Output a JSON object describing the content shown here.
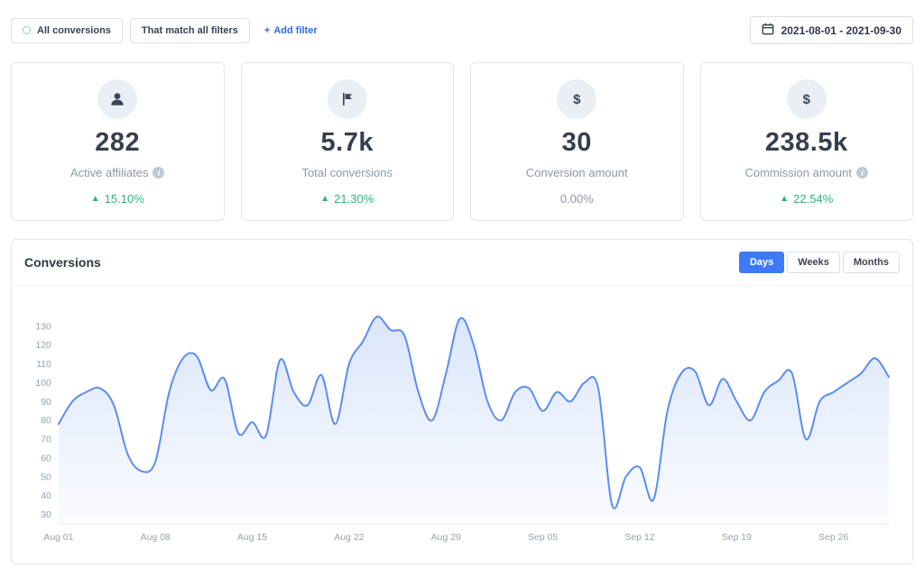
{
  "topbar": {
    "all_conversions": "All conversions",
    "match_all_filters": "That match all filters",
    "add_filter": "Add filter",
    "date_range": "2021-08-01 - 2021-09-30"
  },
  "icons": {
    "plus": "+",
    "dollar": "$",
    "info": "i",
    "up_arrow": "▲"
  },
  "stats": [
    {
      "icon": "user-icon",
      "value": "282",
      "label": "Active affiliates",
      "change": "15.10%",
      "trend": "up"
    },
    {
      "icon": "flag-icon",
      "value": "5.7k",
      "label": "Total conversions",
      "change": "21.30%",
      "trend": "up"
    },
    {
      "icon": "dollar-icon",
      "value": "30",
      "label": "Conversion amount",
      "change": "0.00%",
      "trend": "flat"
    },
    {
      "icon": "dollar-icon",
      "value": "238.5k",
      "label": "Commission amount",
      "change": "22.54%",
      "trend": "up"
    }
  ],
  "panel": {
    "title": "Conversions",
    "tabs": [
      "Days",
      "Weeks",
      "Months"
    ],
    "active_tab": "Days"
  },
  "chart_data": {
    "type": "area",
    "title": "Conversions",
    "x": [
      "Aug 01",
      "Aug 02",
      "Aug 03",
      "Aug 04",
      "Aug 05",
      "Aug 06",
      "Aug 07",
      "Aug 08",
      "Aug 09",
      "Aug 10",
      "Aug 11",
      "Aug 12",
      "Aug 13",
      "Aug 14",
      "Aug 15",
      "Aug 16",
      "Aug 17",
      "Aug 18",
      "Aug 19",
      "Aug 20",
      "Aug 21",
      "Aug 22",
      "Aug 23",
      "Aug 24",
      "Aug 25",
      "Aug 26",
      "Aug 27",
      "Aug 28",
      "Aug 29",
      "Aug 30",
      "Aug 31",
      "Sep 01",
      "Sep 02",
      "Sep 03",
      "Sep 04",
      "Sep 05",
      "Sep 06",
      "Sep 07",
      "Sep 08",
      "Sep 09",
      "Sep 10",
      "Sep 11",
      "Sep 12",
      "Sep 13",
      "Sep 14",
      "Sep 15",
      "Sep 16",
      "Sep 17",
      "Sep 18",
      "Sep 19",
      "Sep 20",
      "Sep 21",
      "Sep 22",
      "Sep 23",
      "Sep 24",
      "Sep 25",
      "Sep 26",
      "Sep 27",
      "Sep 28",
      "Sep 29",
      "Sep 30"
    ],
    "values": [
      78,
      90,
      95,
      97,
      88,
      62,
      53,
      58,
      95,
      113,
      114,
      96,
      102,
      73,
      79,
      72,
      112,
      95,
      88,
      104,
      78,
      110,
      122,
      135,
      128,
      125,
      95,
      80,
      105,
      134,
      120,
      90,
      80,
      95,
      97,
      85,
      95,
      90,
      100,
      97,
      35,
      50,
      55,
      38,
      85,
      105,
      106,
      88,
      102,
      90,
      80,
      95,
      101,
      105,
      70,
      90,
      95,
      100,
      105,
      113,
      103
    ],
    "x_tick_indices": [
      0,
      7,
      14,
      21,
      28,
      35,
      42,
      49,
      56
    ],
    "x_tick_labels": [
      "Aug 01",
      "Aug 08",
      "Aug 15",
      "Aug 22",
      "Aug 29",
      "Sep 05",
      "Sep 12",
      "Sep 19",
      "Sep 26"
    ],
    "y_ticks": [
      30,
      40,
      50,
      60,
      70,
      80,
      90,
      100,
      110,
      120,
      130
    ],
    "ylim": [
      25,
      140
    ],
    "grid": false,
    "legend": false,
    "line_color": "#5b8def",
    "fill_from": "rgba(91,141,239,0.22)",
    "fill_to": "rgba(91,141,239,0.03)",
    "tick_color": "#98a1ae",
    "axis_color": "#e3e7ec"
  }
}
